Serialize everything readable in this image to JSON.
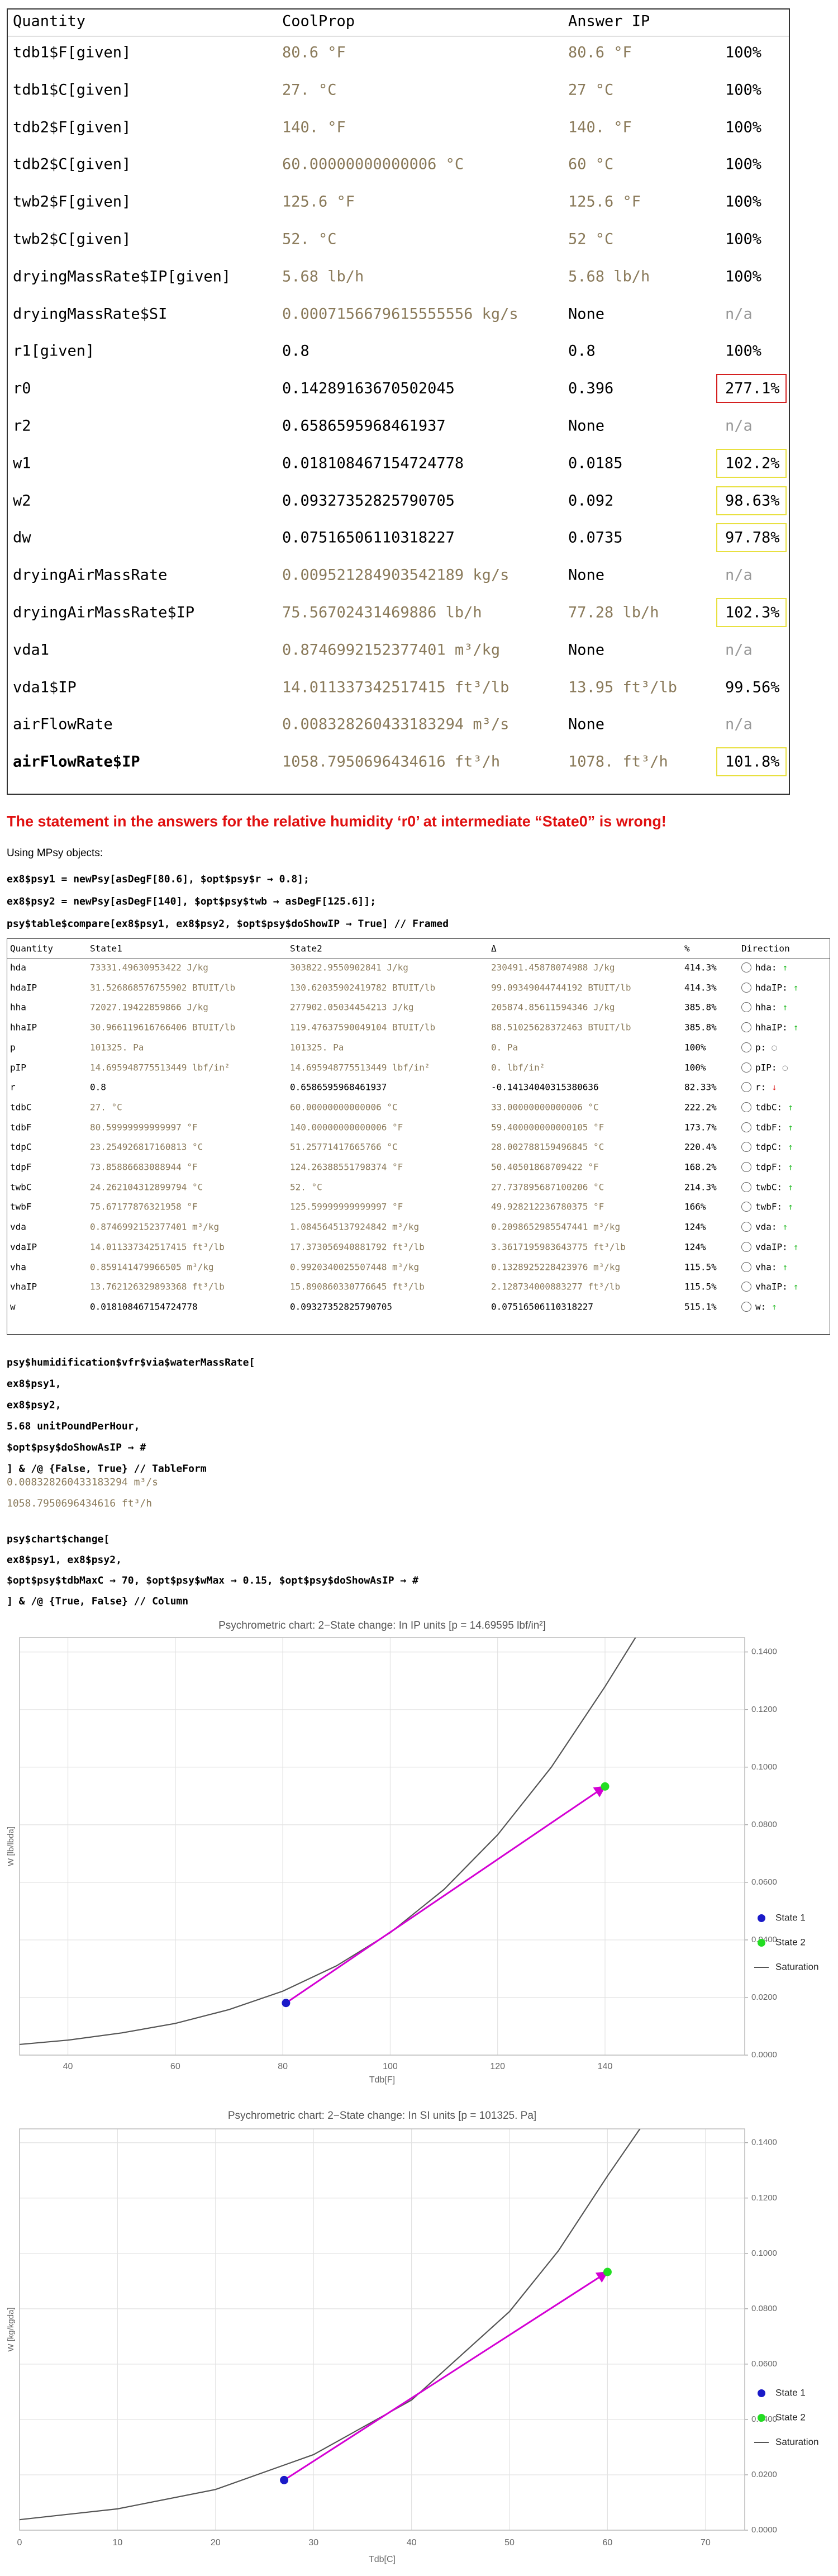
{
  "table1": {
    "header": [
      "Quantity",
      "CoolProp",
      "Answer IP"
    ],
    "rows": [
      {
        "cells": [
          "tdb1$F[given]",
          "80.6 °F",
          "80.6 °F",
          "100%"
        ]
      },
      {
        "cells": [
          "tdb1$C[given]",
          "27. °C",
          "27 °C",
          "100%"
        ]
      },
      {
        "cells": [
          "tdb2$F[given]",
          "140. °F",
          "140. °F",
          "100%"
        ]
      },
      {
        "cells": [
          "tdb2$C[given]",
          "60.00000000000006 °C",
          "60 °C",
          "100%"
        ]
      },
      {
        "cells": [
          "twb2$F[given]",
          "125.6 °F",
          "125.6 °F",
          "100%"
        ]
      },
      {
        "cells": [
          "twb2$C[given]",
          "52. °C",
          "52 °C",
          "100%"
        ]
      },
      {
        "cells": [
          "dryingMassRate$IP[given]",
          "5.68 lb/h",
          "5.68 lb/h",
          "100%"
        ]
      },
      {
        "cells": [
          "dryingMassRate$SI",
          "0.0007156679615555556 kg/s",
          "None",
          "n/a"
        ]
      },
      {
        "cells": [
          "r1[given]",
          "0.8",
          "0.8",
          "100%"
        ]
      },
      {
        "cells": [
          "r0",
          "0.14289163670502045",
          "0.396",
          "277.1%"
        ],
        "box": "#d42020"
      },
      {
        "cells": [
          "r2",
          "0.6586595968461937",
          "None",
          "n/a"
        ]
      },
      {
        "cells": [
          "w1",
          "0.018108467154724778",
          "0.0185",
          "102.2%"
        ],
        "box": "#e8e040"
      },
      {
        "cells": [
          "w2",
          "0.09327352825790705",
          "0.092",
          "98.63%"
        ],
        "box": "#e8e040"
      },
      {
        "cells": [
          "dw",
          "0.07516506110318227",
          "0.0735",
          "97.78%"
        ],
        "box": "#e8e040"
      },
      {
        "cells": [
          "dryingAirMassRate",
          "0.009521284903542189 kg/s",
          "None",
          "n/a"
        ]
      },
      {
        "cells": [
          "dryingAirMassRate$IP",
          "75.56702431469886 lb/h",
          "77.28 lb/h",
          "102.3%"
        ],
        "box": "#e8e040"
      },
      {
        "cells": [
          "vda1",
          "0.8746992152377401 m³/kg",
          "None",
          "n/a"
        ]
      },
      {
        "cells": [
          "vda1$IP",
          "14.011337342517415 ft³/lb",
          "13.95 ft³/lb",
          "99.56%"
        ]
      },
      {
        "cells": [
          "airFlowRate",
          "0.008328260433183294 m³/s",
          "None",
          "n/a"
        ]
      },
      {
        "cells": [
          "airFlowRate$IP",
          "1058.7950696434616 ft³/h",
          "1078. ft³/h",
          "101.8%"
        ],
        "box": "#e8e040",
        "bold": true
      }
    ]
  },
  "heading": "The statement in the answers for the relative humidity ‘r0’ at intermediate “State0” is wrong!",
  "intro": "Using MPsy objects:",
  "code1": [
    "ex8$psy1 = newPsy[asDegF[80.6], $opt$psy$r → 0.8];",
    "ex8$psy2 = newPsy[asDegF[140], $opt$psy$twb → asDegF[125.6]];",
    "psy$table$compare[ex8$psy1, ex8$psy2, $opt$psy$doShowIP → True] // Framed"
  ],
  "table2": {
    "header": [
      "Quantity",
      "State1",
      "State2",
      "Δ",
      "%",
      "Direction"
    ],
    "rows": [
      [
        "hda",
        "73331.49630953422 J/kg",
        "303822.9550902841 J/kg",
        "230491.45878074988 J/kg",
        "414.3%",
        "hda:",
        "↑"
      ],
      [
        "hdaIP",
        "31.526868576755902 BTUIT/lb",
        "130.62035902419782 BTUIT/lb",
        "99.09349044744192 BTUIT/lb",
        "414.3%",
        "hdaIP:",
        "↑"
      ],
      [
        "hha",
        "72027.19422859866 J/kg",
        "277902.05034454213 J/kg",
        "205874.85611594346 J/kg",
        "385.8%",
        "hha:",
        "↑"
      ],
      [
        "hhaIP",
        "30.966119616766406 BTUIT/lb",
        "119.47637590049104 BTUIT/lb",
        "88.51025628372463 BTUIT/lb",
        "385.8%",
        "hhaIP:",
        "↑"
      ],
      [
        "p",
        "101325. Pa",
        "101325. Pa",
        "0. Pa",
        "100%",
        "p:",
        "○"
      ],
      [
        "pIP",
        "14.695948775513449 lbf/in²",
        "14.695948775513449 lbf/in²",
        "0. lbf/in²",
        "100%",
        "pIP:",
        "○"
      ],
      [
        "r",
        "0.8",
        "0.6586595968461937",
        "-0.14134040315380636",
        "82.33%",
        "r:",
        "↓"
      ],
      [
        "tdbC",
        "27. °C",
        "60.00000000000006 °C",
        "33.00000000000006 °C",
        "222.2%",
        "tdbC:",
        "↑"
      ],
      [
        "tdbF",
        "80.59999999999997 °F",
        "140.00000000000006 °F",
        "59.400000000000105 °F",
        "173.7%",
        "tdbF:",
        "↑"
      ],
      [
        "tdpC",
        "23.254926817160813 °C",
        "51.25771417665766 °C",
        "28.002788159496845 °C",
        "220.4%",
        "tdpC:",
        "↑"
      ],
      [
        "tdpF",
        "73.85886683088944 °F",
        "124.26388551798374 °F",
        "50.40501868709422 °F",
        "168.2%",
        "tdpF:",
        "↑"
      ],
      [
        "twbC",
        "24.262104312899794 °C",
        "52. °C",
        "27.737895687100206 °C",
        "214.3%",
        "twbC:",
        "↑"
      ],
      [
        "twbF",
        "75.67177876321958 °F",
        "125.59999999999997 °F",
        "49.928212236780375 °F",
        "166%",
        "twbF:",
        "↑"
      ],
      [
        "vda",
        "0.8746992152377401 m³/kg",
        "1.0845645137924842 m³/kg",
        "0.2098652985547441 m³/kg",
        "124%",
        "vda:",
        "↑"
      ],
      [
        "vdaIP",
        "14.011337342517415 ft³/lb",
        "17.373056940881792 ft³/lb",
        "3.3617195983643775 ft³/lb",
        "124%",
        "vdaIP:",
        "↑"
      ],
      [
        "vha",
        "0.859141479966505 m³/kg",
        "0.9920340025507448 m³/kg",
        "0.1328925228423976 m³/kg",
        "115.5%",
        "vha:",
        "↑"
      ],
      [
        "vhaIP",
        "13.762126329893368 ft³/lb",
        "15.890860330776645 ft³/lb",
        "2.128734000883277 ft³/lb",
        "115.5%",
        "vhaIP:",
        "↑"
      ],
      [
        "w",
        "0.018108467154724778",
        "0.09327352825790705",
        "0.07516506110318227",
        "515.1%",
        "w:",
        "↑"
      ]
    ]
  },
  "code2": [
    "psy$humidification$vfr$via$waterMassRate[",
    "    ex8$psy1,",
    "    ex8$psy2,",
    "    5.68 unitPoundPerHour,",
    "    $opt$psy$doShowAsIP → #",
    "  ] & /@ {False, True} // TableForm"
  ],
  "outputs": [
    "0.008328260433183294 m³/s",
    "1058.7950696434616 ft³/h"
  ],
  "code3": [
    "psy$chart$change[",
    "    ex8$psy1, ex8$psy2,",
    "    $opt$psy$tdbMaxC → 70, $opt$psy$wMax → 0.15, $opt$psy$doShowAsIP → #",
    "  ] & /@ {True, False} // Column"
  ],
  "chart_data": [
    {
      "type": "scatter",
      "title": "Psychrometric chart: 2−State change: In IP units [p = 14.69595 lbf/in²]",
      "xlabel": "Tdb[F]",
      "ylabel": "W [lb/lbda]",
      "xlim": [
        31,
        166
      ],
      "ylim": [
        0,
        0.145
      ],
      "xticks": [
        40,
        60,
        80,
        100,
        120,
        140
      ],
      "yticks": [
        {
          "value": 0,
          "label": "0.0000"
        },
        {
          "value": 0.02,
          "label": "0.0200"
        },
        {
          "value": 0.04,
          "label": "0.0400"
        },
        {
          "value": 0.06,
          "label": "0.0600"
        },
        {
          "value": 0.08,
          "label": "0.0800"
        },
        {
          "value": 0.1,
          "label": "0.1000"
        },
        {
          "value": 0.12,
          "label": "0.1200"
        },
        {
          "value": 0.14,
          "label": "0.1400"
        }
      ],
      "grid": true,
      "legend": "right",
      "arrow_color": "#d400d4",
      "series": [
        {
          "name": "State 1",
          "color": "#1a1ac8",
          "x": [
            80.6
          ],
          "values": [
            0.0181
          ]
        },
        {
          "name": "State 2",
          "color": "#22dd22",
          "x": [
            140
          ],
          "values": [
            0.0933
          ]
        },
        {
          "name": "Saturation",
          "type": "line",
          "color": "#555555",
          "x": [
            31,
            40,
            50,
            60,
            70,
            80,
            90,
            100,
            110,
            120,
            130,
            140,
            146
          ],
          "values": [
            0.0037,
            0.0052,
            0.0077,
            0.011,
            0.0158,
            0.0222,
            0.031,
            0.0425,
            0.0575,
            0.0765,
            0.1,
            0.128,
            0.146
          ]
        }
      ]
    },
    {
      "type": "scatter",
      "title": "Psychrometric chart: 2−State change: In SI units [p = 101325. Pa]",
      "xlabel": "Tdb[C]",
      "ylabel": "W [kg/kgda]",
      "xlim": [
        0,
        74
      ],
      "ylim": [
        0,
        0.145
      ],
      "xticks": [
        0,
        10,
        20,
        30,
        40,
        50,
        60,
        70
      ],
      "yticks": [
        {
          "value": 0,
          "label": "0.0000"
        },
        {
          "value": 0.02,
          "label": "0.0200"
        },
        {
          "value": 0.04,
          "label": "0.0400"
        },
        {
          "value": 0.06,
          "label": "0.0600"
        },
        {
          "value": 0.08,
          "label": "0.0800"
        },
        {
          "value": 0.1,
          "label": "0.1000"
        },
        {
          "value": 0.12,
          "label": "0.1200"
        },
        {
          "value": 0.14,
          "label": "0.1400"
        }
      ],
      "grid": true,
      "legend": "right",
      "arrow_color": "#d400d4",
      "series": [
        {
          "name": "State 1",
          "color": "#1a1ac8",
          "x": [
            27
          ],
          "values": [
            0.0181
          ]
        },
        {
          "name": "State 2",
          "color": "#22dd22",
          "x": [
            60
          ],
          "values": [
            0.0933
          ]
        },
        {
          "name": "Saturation",
          "type": "line",
          "color": "#555555",
          "x": [
            0,
            10,
            20,
            30,
            40,
            50,
            55,
            60,
            63.5
          ],
          "values": [
            0.0038,
            0.0077,
            0.0147,
            0.0273,
            0.047,
            0.079,
            0.101,
            0.128,
            0.146
          ]
        }
      ]
    }
  ]
}
